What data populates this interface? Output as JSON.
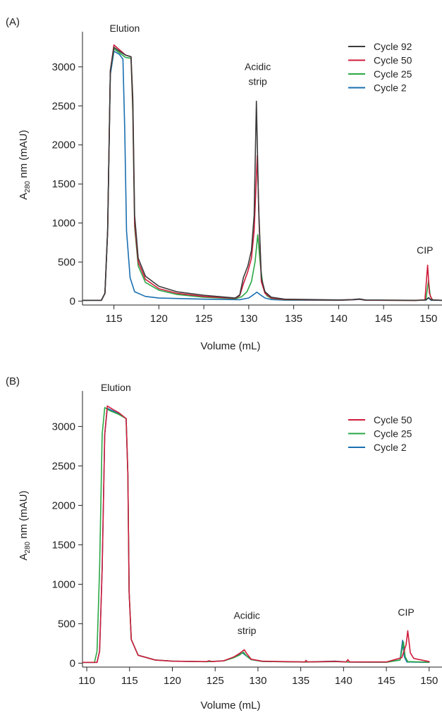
{
  "chart_data": [
    {
      "panel_label": "(A)",
      "type": "line",
      "xlabel": "Volume (mL)",
      "ylabel_main": "A",
      "ylabel_sub": "280",
      "ylabel_rest": " nm (mAU)",
      "xlim": [
        111.5,
        151.5
      ],
      "ylim": [
        -50,
        3450
      ],
      "xticks": [
        115,
        120,
        125,
        130,
        135,
        140,
        145,
        150
      ],
      "yticks": [
        0,
        500,
        1000,
        1500,
        2000,
        2500,
        3000
      ],
      "legend_position": "top-right",
      "annotations": [
        {
          "text": "Elution",
          "x": 116.2,
          "y": 3450
        },
        {
          "text": "Acidic",
          "x": 131.0,
          "y": 2960
        },
        {
          "text": "strip",
          "x": 131.0,
          "y": 2770
        },
        {
          "text": "CIP",
          "x": 149.6,
          "y": 610
        }
      ],
      "series": [
        {
          "name": "Cycle 92",
          "color": "#3a3a3a",
          "points": [
            [
              111.5,
              10
            ],
            [
              113.6,
              10
            ],
            [
              114.0,
              100
            ],
            [
              114.3,
              900
            ],
            [
              114.6,
              2950
            ],
            [
              115.0,
              3250
            ],
            [
              115.6,
              3200
            ],
            [
              116.3,
              3150
            ],
            [
              116.9,
              3130
            ],
            [
              117.1,
              2600
            ],
            [
              117.3,
              1100
            ],
            [
              117.7,
              550
            ],
            [
              118.5,
              320
            ],
            [
              120,
              190
            ],
            [
              122,
              120
            ],
            [
              125,
              75
            ],
            [
              128.5,
              40
            ],
            [
              129.0,
              80
            ],
            [
              129.4,
              300
            ],
            [
              129.9,
              450
            ],
            [
              130.3,
              650
            ],
            [
              130.6,
              1100
            ],
            [
              130.85,
              2560
            ],
            [
              131.1,
              1200
            ],
            [
              131.4,
              300
            ],
            [
              131.8,
              120
            ],
            [
              132.5,
              50
            ],
            [
              134,
              25
            ],
            [
              140,
              15
            ],
            [
              141.5,
              20
            ],
            [
              142.3,
              28
            ],
            [
              143,
              15
            ],
            [
              148.5,
              10
            ],
            [
              149.7,
              15
            ],
            [
              150.0,
              45
            ],
            [
              150.3,
              15
            ],
            [
              151.5,
              10
            ]
          ]
        },
        {
          "name": "Cycle 50",
          "color": "#d01c3c",
          "points": [
            [
              111.5,
              10
            ],
            [
              113.6,
              10
            ],
            [
              114.0,
              100
            ],
            [
              114.3,
              900
            ],
            [
              114.6,
              2950
            ],
            [
              115.0,
              3280
            ],
            [
              115.6,
              3220
            ],
            [
              116.3,
              3150
            ],
            [
              116.9,
              3130
            ],
            [
              117.1,
              2500
            ],
            [
              117.3,
              1000
            ],
            [
              117.7,
              500
            ],
            [
              118.5,
              280
            ],
            [
              120,
              160
            ],
            [
              122,
              100
            ],
            [
              125,
              60
            ],
            [
              128.5,
              35
            ],
            [
              129.0,
              70
            ],
            [
              129.4,
              220
            ],
            [
              129.9,
              380
            ],
            [
              130.3,
              550
            ],
            [
              130.6,
              900
            ],
            [
              130.95,
              1870
            ],
            [
              131.15,
              1000
            ],
            [
              131.4,
              250
            ],
            [
              131.8,
              100
            ],
            [
              132.5,
              40
            ],
            [
              134,
              20
            ],
            [
              140,
              12
            ],
            [
              141.5,
              18
            ],
            [
              142.3,
              25
            ],
            [
              143,
              12
            ],
            [
              148.5,
              8
            ],
            [
              149.6,
              15
            ],
            [
              149.9,
              460
            ],
            [
              150.1,
              100
            ],
            [
              150.4,
              15
            ],
            [
              151.5,
              10
            ]
          ]
        },
        {
          "name": "Cycle 25",
          "color": "#2aa744",
          "points": [
            [
              111.5,
              10
            ],
            [
              113.6,
              10
            ],
            [
              114.0,
              100
            ],
            [
              114.3,
              900
            ],
            [
              114.6,
              2950
            ],
            [
              115.0,
              3230
            ],
            [
              115.6,
              3180
            ],
            [
              116.3,
              3120
            ],
            [
              116.9,
              3110
            ],
            [
              117.1,
              2400
            ],
            [
              117.3,
              950
            ],
            [
              117.7,
              450
            ],
            [
              118.5,
              240
            ],
            [
              120,
              140
            ],
            [
              122,
              85
            ],
            [
              125,
              50
            ],
            [
              128.5,
              30
            ],
            [
              129.2,
              55
            ],
            [
              129.8,
              120
            ],
            [
              130.3,
              250
            ],
            [
              130.7,
              500
            ],
            [
              131.0,
              850
            ],
            [
              131.3,
              450
            ],
            [
              131.6,
              180
            ],
            [
              132.0,
              70
            ],
            [
              132.5,
              35
            ],
            [
              134,
              18
            ],
            [
              140,
              12
            ],
            [
              141.5,
              18
            ],
            [
              142.3,
              25
            ],
            [
              143,
              12
            ],
            [
              148.5,
              8
            ],
            [
              149.7,
              15
            ],
            [
              150.0,
              260
            ],
            [
              150.2,
              60
            ],
            [
              150.5,
              12
            ],
            [
              151.5,
              10
            ]
          ]
        },
        {
          "name": "Cycle 2",
          "color": "#1a6fb0",
          "points": [
            [
              111.5,
              10
            ],
            [
              113.6,
              10
            ],
            [
              114.0,
              100
            ],
            [
              114.3,
              900
            ],
            [
              114.6,
              2900
            ],
            [
              115.0,
              3200
            ],
            [
              115.6,
              3160
            ],
            [
              116.0,
              3100
            ],
            [
              116.2,
              2200
            ],
            [
              116.4,
              900
            ],
            [
              116.8,
              300
            ],
            [
              117.3,
              120
            ],
            [
              118.5,
              60
            ],
            [
              120,
              40
            ],
            [
              125,
              25
            ],
            [
              129,
              18
            ],
            [
              130.0,
              40
            ],
            [
              130.5,
              80
            ],
            [
              130.9,
              115
            ],
            [
              131.3,
              80
            ],
            [
              131.8,
              40
            ],
            [
              132.5,
              20
            ],
            [
              134,
              12
            ],
            [
              140,
              10
            ],
            [
              141.5,
              16
            ],
            [
              142.3,
              22
            ],
            [
              143,
              10
            ],
            [
              149.7,
              12
            ],
            [
              150.0,
              40
            ],
            [
              150.3,
              10
            ],
            [
              151.5,
              10
            ]
          ]
        }
      ]
    },
    {
      "panel_label": "(B)",
      "type": "line",
      "xlabel": "Volume (mL)",
      "ylabel_main": "A",
      "ylabel_sub": "280",
      "ylabel_rest": " nm (mAU)",
      "xlim": [
        109.5,
        151.5
      ],
      "ylim": [
        -50,
        3450
      ],
      "xticks": [
        110,
        115,
        120,
        125,
        130,
        135,
        140,
        145,
        150
      ],
      "yticks": [
        0,
        500,
        1000,
        1500,
        2000,
        2500,
        3000
      ],
      "legend_position": "top-right",
      "annotations": [
        {
          "text": "Elution",
          "x": 113.4,
          "y": 3450
        },
        {
          "text": "Acidic",
          "x": 128.7,
          "y": 560
        },
        {
          "text": "strip",
          "x": 128.7,
          "y": 370
        },
        {
          "text": "CIP",
          "x": 147.3,
          "y": 600
        }
      ],
      "series": [
        {
          "name": "Cycle 50",
          "color": "#d01c3c",
          "points": [
            [
              109.5,
              10
            ],
            [
              111.2,
              10
            ],
            [
              111.5,
              150
            ],
            [
              111.8,
              1200
            ],
            [
              112.1,
              2900
            ],
            [
              112.4,
              3260
            ],
            [
              113.0,
              3220
            ],
            [
              113.8,
              3170
            ],
            [
              114.6,
              3100
            ],
            [
              114.8,
              2400
            ],
            [
              114.95,
              900
            ],
            [
              115.2,
              300
            ],
            [
              116.0,
              100
            ],
            [
              118,
              40
            ],
            [
              120,
              25
            ],
            [
              124,
              20
            ],
            [
              124.3,
              30
            ],
            [
              124.6,
              20
            ],
            [
              126,
              30
            ],
            [
              127.2,
              80
            ],
            [
              127.8,
              120
            ],
            [
              128.4,
              170
            ],
            [
              128.7,
              120
            ],
            [
              129.2,
              50
            ],
            [
              130.5,
              25
            ],
            [
              135.5,
              15
            ],
            [
              135.6,
              35
            ],
            [
              135.8,
              15
            ],
            [
              139,
              22
            ],
            [
              140.3,
              15
            ],
            [
              140.5,
              45
            ],
            [
              140.7,
              15
            ],
            [
              145,
              15
            ],
            [
              146.8,
              70
            ],
            [
              147.3,
              230
            ],
            [
              147.5,
              410
            ],
            [
              147.8,
              130
            ],
            [
              148.2,
              60
            ],
            [
              150,
              20
            ]
          ]
        },
        {
          "name": "Cycle 25",
          "color": "#2aa744",
          "points": [
            [
              109.5,
              10
            ],
            [
              110.9,
              10
            ],
            [
              111.2,
              150
            ],
            [
              111.5,
              1200
            ],
            [
              111.8,
              2900
            ],
            [
              112.1,
              3240
            ],
            [
              112.7,
              3200
            ],
            [
              113.6,
              3160
            ],
            [
              114.6,
              3100
            ],
            [
              114.8,
              2400
            ],
            [
              114.95,
              900
            ],
            [
              115.2,
              300
            ],
            [
              116.0,
              100
            ],
            [
              118,
              40
            ],
            [
              120,
              25
            ],
            [
              124,
              18
            ],
            [
              126,
              28
            ],
            [
              127.2,
              70
            ],
            [
              127.8,
              100
            ],
            [
              128.3,
              140
            ],
            [
              128.6,
              100
            ],
            [
              129.2,
              45
            ],
            [
              130.5,
              22
            ],
            [
              135.5,
              14
            ],
            [
              139,
              20
            ],
            [
              140.5,
              14
            ],
            [
              145,
              12
            ],
            [
              146.6,
              40
            ],
            [
              147.0,
              270
            ],
            [
              147.2,
              80
            ],
            [
              147.5,
              20
            ],
            [
              150,
              12
            ]
          ]
        },
        {
          "name": "Cycle 2",
          "color": "#1a6fb0",
          "points": [
            [
              109.5,
              10
            ],
            [
              111.2,
              10
            ],
            [
              111.5,
              150
            ],
            [
              111.8,
              1200
            ],
            [
              112.1,
              2900
            ],
            [
              112.4,
              3230
            ],
            [
              113.0,
              3200
            ],
            [
              113.8,
              3160
            ],
            [
              114.6,
              3100
            ],
            [
              114.8,
              2400
            ],
            [
              114.95,
              900
            ],
            [
              115.2,
              300
            ],
            [
              116.0,
              100
            ],
            [
              118,
              40
            ],
            [
              120,
              25
            ],
            [
              124,
              18
            ],
            [
              126,
              30
            ],
            [
              127.2,
              75
            ],
            [
              127.8,
              110
            ],
            [
              128.2,
              130
            ],
            [
              128.6,
              95
            ],
            [
              129.2,
              45
            ],
            [
              130.5,
              22
            ],
            [
              135.5,
              14
            ],
            [
              139,
              25
            ],
            [
              140.5,
              14
            ],
            [
              145,
              12
            ],
            [
              146.6,
              40
            ],
            [
              146.9,
              290
            ],
            [
              147.1,
              80
            ],
            [
              147.4,
              15
            ],
            [
              150,
              10
            ]
          ]
        }
      ]
    }
  ]
}
